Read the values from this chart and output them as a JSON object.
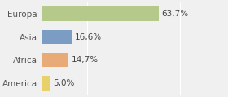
{
  "categories": [
    "Europa",
    "Asia",
    "Africa",
    "America"
  ],
  "values": [
    63.7,
    16.6,
    14.7,
    5.0
  ],
  "labels": [
    "63,7%",
    "16,6%",
    "14,7%",
    "5,0%"
  ],
  "bar_colors": [
    "#b5c98a",
    "#7b9dc4",
    "#e8ab78",
    "#e8d06a"
  ],
  "xlim": [
    0,
    100
  ],
  "background_color": "#f0f0f0",
  "bar_height": 0.62,
  "label_fontsize": 7.5,
  "tick_fontsize": 7.5,
  "grid_color": "#ffffff",
  "grid_xticks": [
    0,
    25,
    50,
    75,
    100
  ]
}
